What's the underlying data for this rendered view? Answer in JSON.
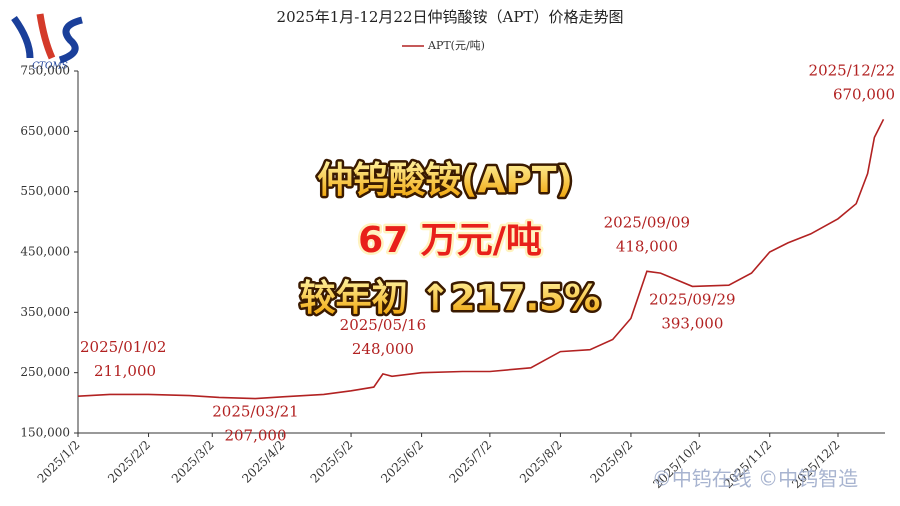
{
  "brand": "CTOMS",
  "watermark": "©中钨在线 ©中钨智造",
  "overlay": [
    "仲钨酸铵(APT)",
    "67 万元/吨",
    "较年初 ↑217.5%"
  ],
  "chart_data": {
    "type": "line",
    "title": "2025年1月-12月22日仲钨酸铵（APT）价格走势图",
    "x": [
      "2025/1/2",
      "2025/1/16",
      "2025/2/2",
      "2025/2/20",
      "2025/3/5",
      "2025/3/21",
      "2025/4/2",
      "2025/4/20",
      "2025/5/2",
      "2025/5/12",
      "2025/5/16",
      "2025/5/20",
      "2025/6/2",
      "2025/6/20",
      "2025/7/2",
      "2025/7/20",
      "2025/8/2",
      "2025/8/15",
      "2025/8/25",
      "2025/9/2",
      "2025/9/9",
      "2025/9/15",
      "2025/9/29",
      "2025/10/15",
      "2025/10/25",
      "2025/11/2",
      "2025/11/10",
      "2025/11/20",
      "2025/12/2",
      "2025/12/10",
      "2025/12/15",
      "2025/12/18",
      "2025/12/22"
    ],
    "series": [
      {
        "name": "APT(元/吨)",
        "color": "#b22222",
        "values": [
          211000,
          214000,
          214000,
          212000,
          209000,
          207000,
          210000,
          214000,
          220000,
          226000,
          248000,
          244000,
          250000,
          252000,
          252000,
          258000,
          285000,
          288000,
          305000,
          340000,
          418000,
          415000,
          393000,
          395000,
          415000,
          450000,
          465000,
          480000,
          505000,
          530000,
          580000,
          640000,
          670000
        ]
      }
    ],
    "xticks": [
      "2025/1/2",
      "2025/2/2",
      "2025/3/2",
      "2025/4/2",
      "2025/5/2",
      "2025/6/2",
      "2025/7/2",
      "2025/8/2",
      "2025/9/2",
      "2025/10/2",
      "2025/11/2",
      "2025/12/2"
    ],
    "ylim": [
      150000,
      750000
    ],
    "yticks": [
      {
        "value": 150000,
        "label": "150,000"
      },
      {
        "value": 250000,
        "label": "250,000"
      },
      {
        "value": 350000,
        "label": "350,000"
      },
      {
        "value": 450000,
        "label": "450,000"
      },
      {
        "value": 550000,
        "label": "550,000"
      },
      {
        "value": 650000,
        "label": "650,000"
      },
      {
        "value": 750000,
        "label": "750,000"
      }
    ],
    "annotations": [
      {
        "date": "2025/01/02",
        "value": 211000,
        "label": "211,000",
        "position": "above"
      },
      {
        "date": "2025/03/21",
        "value": 207000,
        "label": "207,000",
        "position": "below"
      },
      {
        "date": "2025/05/16",
        "value": 248000,
        "label": "248,000",
        "position": "above"
      },
      {
        "date": "2025/09/09",
        "value": 418000,
        "label": "418,000",
        "position": "above"
      },
      {
        "date": "2025/09/29",
        "value": 393000,
        "label": "393,000",
        "position": "below"
      },
      {
        "date": "2025/12/22",
        "value": 670000,
        "label": "670,000",
        "position": "above"
      }
    ]
  }
}
